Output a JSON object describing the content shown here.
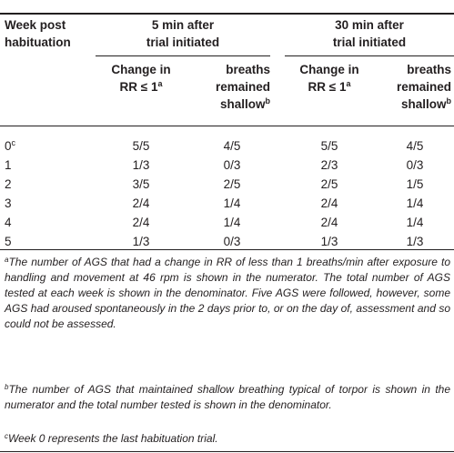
{
  "header": {
    "col0": [
      "Week post",
      "habituation"
    ],
    "group1": [
      "5 min after",
      "trial initiated"
    ],
    "group2": [
      "30 min after",
      "trial initiated"
    ],
    "sub1": {
      "line1": "Change in",
      "line2": "RR ≤ 1",
      "sup": "a"
    },
    "sub2": {
      "line1": "breaths",
      "line2": "remained",
      "line3": "shallow",
      "sup": "b"
    }
  },
  "rows": [
    {
      "week": "0",
      "week_sup": "c",
      "v": [
        "5/5",
        "4/5",
        "5/5",
        "4/5"
      ]
    },
    {
      "week": "1",
      "week_sup": "",
      "v": [
        "1/3",
        "0/3",
        "2/3",
        "0/3"
      ]
    },
    {
      "week": "2",
      "week_sup": "",
      "v": [
        "3/5",
        "2/5",
        "2/5",
        "1/5"
      ]
    },
    {
      "week": "3",
      "week_sup": "",
      "v": [
        "2/4",
        "1/4",
        "2/4",
        "1/4"
      ]
    },
    {
      "week": "4",
      "week_sup": "",
      "v": [
        "2/4",
        "1/4",
        "2/4",
        "1/4"
      ]
    },
    {
      "week": "5",
      "week_sup": "",
      "v": [
        "1/3",
        "0/3",
        "1/3",
        "1/3"
      ]
    }
  ],
  "footnotes": {
    "a": {
      "mark": "a",
      "text": "The number of AGS that had a change in RR of less than 1 breaths/min after exposure to handling and movement at 46 rpm is shown in the numerator. The total number of AGS tested at each week is shown in the denominator. Five AGS were followed, however, some AGS had aroused spontaneously in the 2 days prior to, or on the day of, assessment and so could not be assessed."
    },
    "b": {
      "mark": "b",
      "text": "The number of AGS that maintained shallow breathing typical of torpor is shown in the numerator and the total number tested is shown in the denominator."
    },
    "c": {
      "mark": "c",
      "text": "Week 0 represents the last habituation trial."
    }
  }
}
